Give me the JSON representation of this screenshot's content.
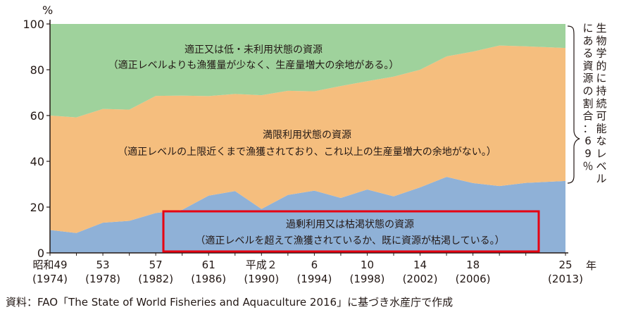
{
  "chart_data": {
    "type": "area",
    "stacked": true,
    "y_unit": "%",
    "year_unit": "年",
    "ylim": [
      0,
      100
    ],
    "yticks": [
      "0",
      "20",
      "40",
      "60",
      "80",
      "100"
    ],
    "x_years": [
      1974,
      1976,
      1978,
      1980,
      1982,
      1984,
      1986,
      1988,
      1990,
      1992,
      1994,
      1996,
      1998,
      2000,
      2002,
      2004,
      2006,
      2008,
      2010,
      2013
    ],
    "series": [
      {
        "key": "overfished",
        "color": "#8fb1d7",
        "values": [
          10,
          8.7,
          13.2,
          14,
          17.4,
          18.8,
          25,
          27,
          19.2,
          25.3,
          27.2,
          24,
          27.7,
          24.7,
          28.6,
          33.2,
          30.5,
          29.2,
          30.6,
          31.4
        ]
      },
      {
        "key": "fully_fished",
        "color": "#f5be7e",
        "values": [
          50,
          50.5,
          49.7,
          48.6,
          51.2,
          49.9,
          43.5,
          42.4,
          49.7,
          45.5,
          43.4,
          48.9,
          47.3,
          52.3,
          51.4,
          52.6,
          57.4,
          61.4,
          59.6,
          58.1
        ]
      },
      {
        "key": "underfished",
        "color": "#9fd29c",
        "values": [
          40,
          40.8,
          37.1,
          37.4,
          31.4,
          31.3,
          31.5,
          30.6,
          31.1,
          29.2,
          29.4,
          27.1,
          25,
          23,
          20,
          14.2,
          12.1,
          9.4,
          9.8,
          10.5
        ]
      }
    ],
    "x_tick_labels": [
      {
        "year": 1974,
        "line1": "昭和49",
        "line2": "(1974)"
      },
      {
        "year": 1978,
        "line1": "53",
        "line2": "(1978)"
      },
      {
        "year": 1982,
        "line1": "57",
        "line2": "(1982)"
      },
      {
        "year": 1986,
        "line1": "61",
        "line2": "(1986)"
      },
      {
        "year": 1990,
        "line1": "平成２",
        "line2": "(1990)"
      },
      {
        "year": 1994,
        "line1": "6",
        "line2": "(1994)"
      },
      {
        "year": 1998,
        "line1": "10",
        "line2": "(1998)"
      },
      {
        "year": 2002,
        "line1": "14",
        "line2": "(2002)"
      },
      {
        "year": 2006,
        "line1": "18",
        "line2": "(2006)"
      },
      {
        "year": 2013,
        "line1": "25",
        "line2": "(2013)"
      }
    ],
    "annotations": {
      "underfished_line1": "適正又は低・未利用状態の資源",
      "underfished_line2": "（適正レベルよりも漁獲量が少なく、生産量増大の余地がある。）",
      "fully_line1": "満限利用状態の資源",
      "fully_line2": "（適正レベルの上限近くまで漁獲されており、これ以上の生産量増大の余地がない。）",
      "over_line1": "過剰利用又は枯渇状態の資源",
      "over_line2": "（適正レベルを超えて漁獲されているか、既に資源が枯渇している。）",
      "over_highlight_color": "#e60012",
      "side_note": "生物学的に持続可能なレベルにある資源の割合：69％"
    }
  },
  "source_note": "資料：FAO「The State of World Fisheries and Aquaculture 2016」に基づき水産庁で作成"
}
